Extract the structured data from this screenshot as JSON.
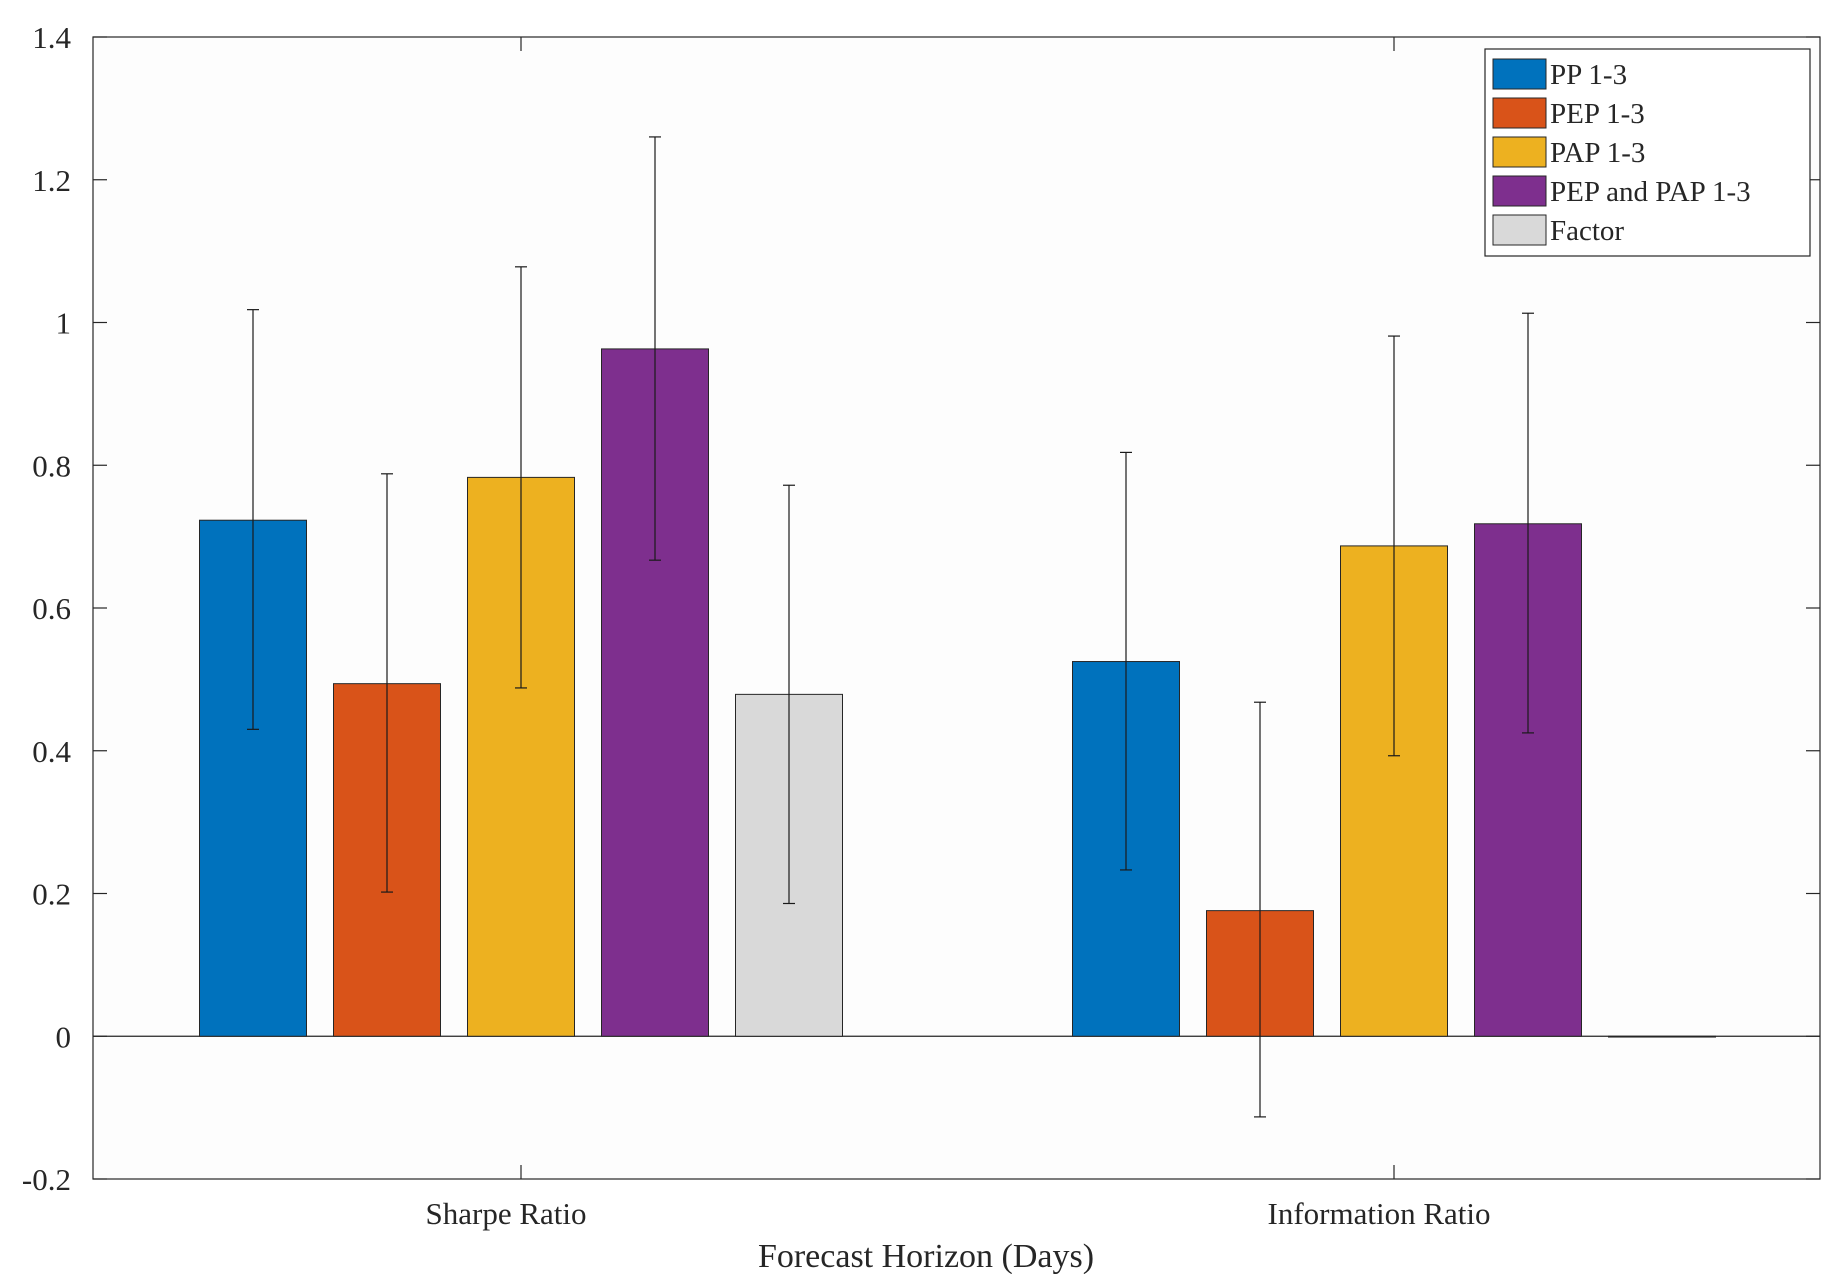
{
  "chart_data": {
    "type": "bar",
    "title": "",
    "xlabel": "Forecast Horizon (Days)",
    "ylabel": "",
    "ylim": [
      -0.2,
      1.4
    ],
    "yticks": [
      "-0.2",
      "0",
      "0.2",
      "0.4",
      "0.6",
      "0.8",
      "1",
      "1.2",
      "1.4"
    ],
    "ytick_values": [
      -0.2,
      0,
      0.2,
      0.4,
      0.6,
      0.8,
      1.0,
      1.2,
      1.4
    ],
    "categories": [
      "Sharpe Ratio",
      "Information Ratio"
    ],
    "legend_position": "top-right",
    "series": [
      {
        "name": "PP 1-3",
        "color": "#0072BD",
        "values": [
          0.723,
          0.525
        ],
        "err_low": [
          0.43,
          0.233
        ],
        "err_high": [
          1.018,
          0.818
        ]
      },
      {
        "name": "PEP 1-3",
        "color": "#D95319",
        "values": [
          0.494,
          0.176
        ],
        "err_low": [
          0.202,
          -0.113
        ],
        "err_high": [
          0.788,
          0.468
        ]
      },
      {
        "name": "PAP 1-3",
        "color": "#EDB120",
        "values": [
          0.783,
          0.687
        ],
        "err_low": [
          0.488,
          0.393
        ],
        "err_high": [
          1.078,
          0.981
        ]
      },
      {
        "name": "PEP and PAP 1-3",
        "color": "#7E2F8E",
        "values": [
          0.963,
          0.718
        ],
        "err_low": [
          0.667,
          0.425
        ],
        "err_high": [
          1.26,
          1.013
        ]
      },
      {
        "name": "Factor",
        "color": "#D9D9D9",
        "values": [
          0.479,
          0.0
        ],
        "err_low": [
          0.186,
          null
        ],
        "err_high": [
          0.772,
          null
        ]
      }
    ]
  }
}
